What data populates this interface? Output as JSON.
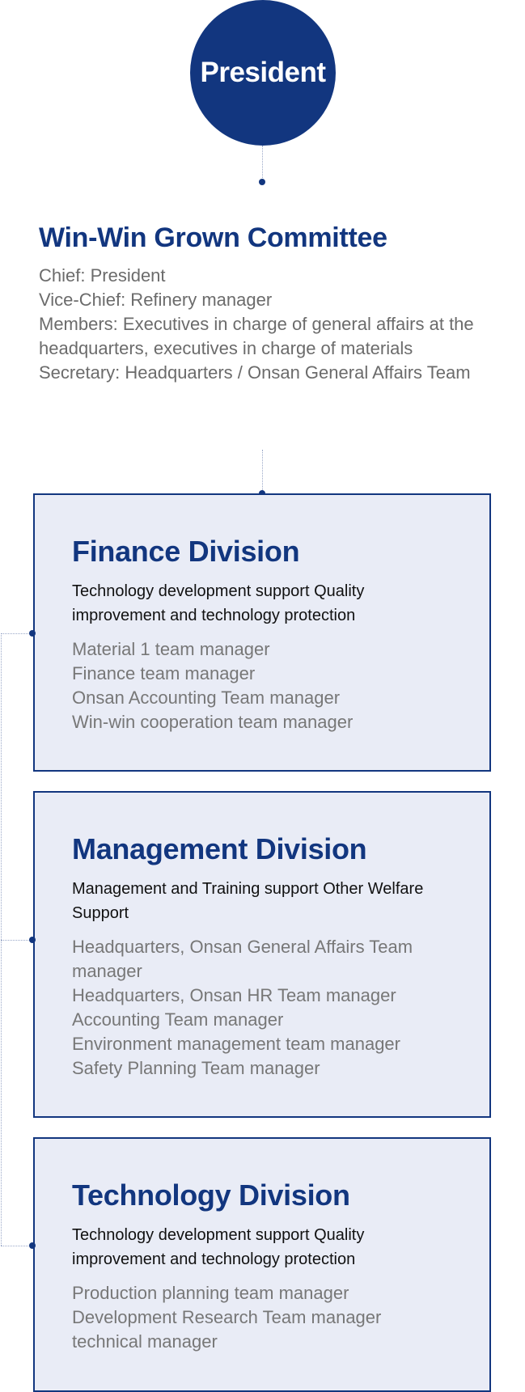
{
  "president": {
    "label": "President"
  },
  "committee": {
    "title": "Win-Win Grown Committee",
    "lines": [
      "Chief: President",
      "Vice-Chief: Refinery manager",
      "Members: Executives in charge of general affairs at the headquarters, executives in charge of  materials",
      "Secretary: Headquarters / Onsan General Affairs Team"
    ]
  },
  "divisions": [
    {
      "title": "Finance Division",
      "description": "Technology development support  Quality improvement and technology protection",
      "members": [
        "Material 1 team manager",
        "Finance team manager",
        "Onsan Accounting Team manager",
        "Win-win cooperation team manager"
      ]
    },
    {
      "title": "Management Division",
      "description": "Management and Training support Other Welfare Support",
      "members": [
        "Headquarters, Onsan General Affairs Team manager",
        "Headquarters, Onsan HR Team manager",
        "Accounting Team manager",
        "Environment management team manager",
        "Safety Planning Team manager"
      ]
    },
    {
      "title": "Technology Division",
      "description": "Technology development support  Quality improvement and technology protection",
      "members": [
        "Production planning team manager",
        "Development Research Team manager",
        "technical manager"
      ]
    }
  ],
  "colors": {
    "primary": "#12367f",
    "division_background": "#e9ecf6",
    "muted_text": "#777777"
  }
}
